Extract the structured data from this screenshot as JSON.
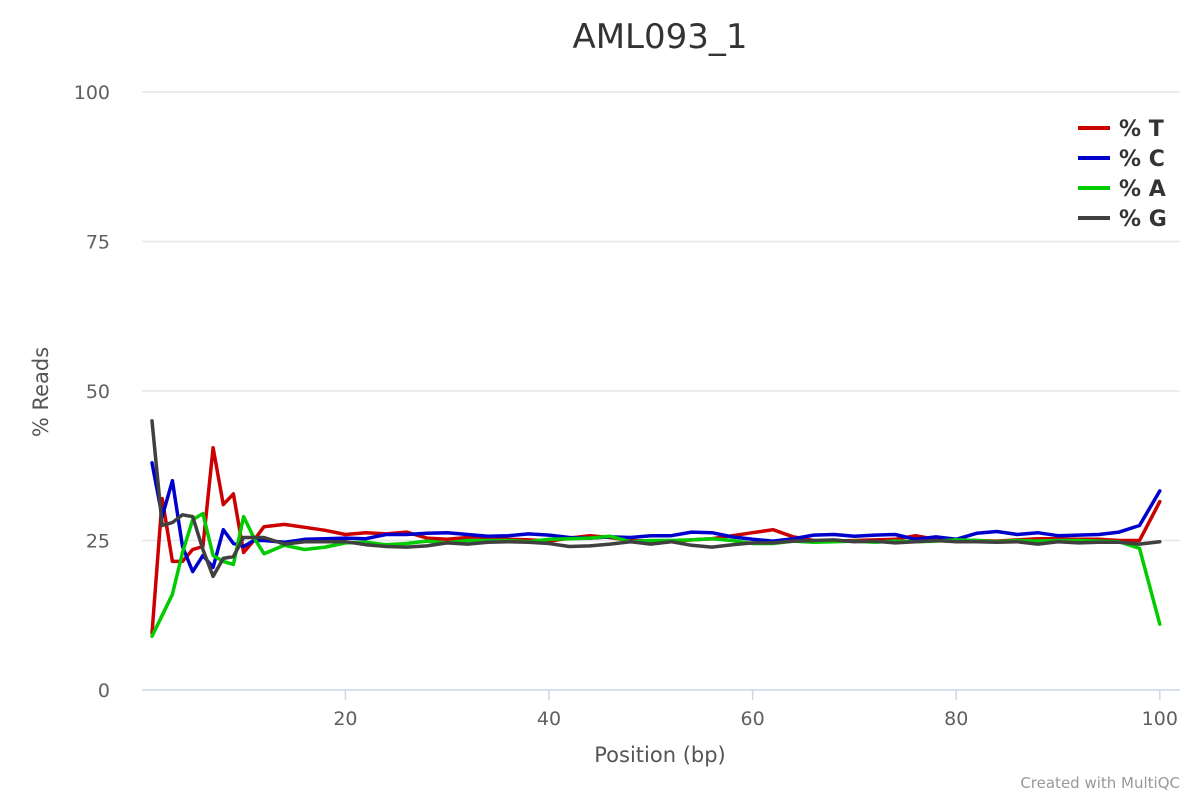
{
  "credit": "Created with MultiQC",
  "chart_data": {
    "type": "line",
    "title": "AML093_1",
    "xlabel": "Position (bp)",
    "ylabel": "% Reads",
    "xlim": [
      1,
      101
    ],
    "ylim": [
      0,
      100
    ],
    "x_ticks": [
      20,
      40,
      60,
      80,
      100
    ],
    "y_ticks": [
      0,
      25,
      50,
      75,
      100
    ],
    "grid": "horizontal",
    "legend_position": "top-right",
    "x": [
      1,
      2,
      3,
      4,
      5,
      6,
      7,
      8,
      9,
      10,
      11,
      12,
      14,
      16,
      18,
      20,
      22,
      24,
      26,
      28,
      30,
      32,
      34,
      36,
      38,
      40,
      42,
      44,
      46,
      48,
      50,
      52,
      54,
      56,
      58,
      60,
      62,
      64,
      66,
      68,
      70,
      72,
      74,
      76,
      78,
      80,
      82,
      84,
      86,
      88,
      90,
      92,
      94,
      96,
      98,
      100
    ],
    "series": [
      {
        "name": "% T",
        "color": "#cc0000",
        "values": [
          9.5,
          32.0,
          21.5,
          21.5,
          23.5,
          24.0,
          40.5,
          31.0,
          32.8,
          23.0,
          25.0,
          27.3,
          27.7,
          27.2,
          26.7,
          26.0,
          26.3,
          26.1,
          26.4,
          25.4,
          25.2,
          25.5,
          25.4,
          25.2,
          25.1,
          24.9,
          25.4,
          25.8,
          25.5,
          25.0,
          24.9,
          24.8,
          25.1,
          25.3,
          25.8,
          26.3,
          26.8,
          25.6,
          25.0,
          24.9,
          25.0,
          25.1,
          25.2,
          25.8,
          25.2,
          25.1,
          25.0,
          24.9,
          25.1,
          25.3,
          25.3,
          25.2,
          25.2,
          25.0,
          25.0,
          31.5
        ]
      },
      {
        "name": "% C",
        "color": "#0000cc",
        "values": [
          38.0,
          29.0,
          35.0,
          24.0,
          19.8,
          22.5,
          20.5,
          26.8,
          24.5,
          24.0,
          25.0,
          25.0,
          24.7,
          25.2,
          25.3,
          25.4,
          25.3,
          26.0,
          26.0,
          26.2,
          26.3,
          26.0,
          25.7,
          25.8,
          26.1,
          25.9,
          25.5,
          25.4,
          25.6,
          25.5,
          25.8,
          25.8,
          26.4,
          26.3,
          25.6,
          25.2,
          24.9,
          25.3,
          25.9,
          26.0,
          25.7,
          25.9,
          26.0,
          25.2,
          25.6,
          25.2,
          26.2,
          26.5,
          26.0,
          26.3,
          25.8,
          25.9,
          26.0,
          26.4,
          27.5,
          33.3
        ]
      },
      {
        "name": "% A",
        "color": "#00cc00",
        "values": [
          9.0,
          12.5,
          16.0,
          23.0,
          28.5,
          29.5,
          22.5,
          21.5,
          21.0,
          29.0,
          25.5,
          22.8,
          24.2,
          23.5,
          23.9,
          24.6,
          24.7,
          24.3,
          24.5,
          24.9,
          24.6,
          25.0,
          25.0,
          25.0,
          24.8,
          25.2,
          25.3,
          25.4,
          25.7,
          24.8,
          25.0,
          25.0,
          25.1,
          25.3,
          25.0,
          24.5,
          24.5,
          24.9,
          24.7,
          24.8,
          24.9,
          24.7,
          24.9,
          24.8,
          24.9,
          25.1,
          25.0,
          24.8,
          25.0,
          24.9,
          25.0,
          25.0,
          24.9,
          24.8,
          23.7,
          11.0
        ]
      },
      {
        "name": "% G",
        "color": "#404040",
        "values": [
          45.0,
          27.5,
          28.0,
          29.3,
          29.0,
          23.5,
          19.0,
          22.0,
          22.3,
          25.5,
          25.5,
          25.5,
          24.4,
          24.8,
          24.8,
          24.8,
          24.3,
          24.0,
          23.9,
          24.1,
          24.6,
          24.4,
          24.7,
          24.8,
          24.7,
          24.5,
          24.0,
          24.1,
          24.4,
          24.8,
          24.4,
          24.8,
          24.2,
          23.9,
          24.3,
          24.6,
          24.6,
          24.9,
          25.0,
          25.1,
          24.8,
          24.9,
          24.6,
          24.8,
          25.0,
          24.8,
          24.8,
          24.7,
          24.8,
          24.4,
          24.8,
          24.6,
          24.7,
          24.7,
          24.4,
          24.8
        ]
      }
    ]
  }
}
